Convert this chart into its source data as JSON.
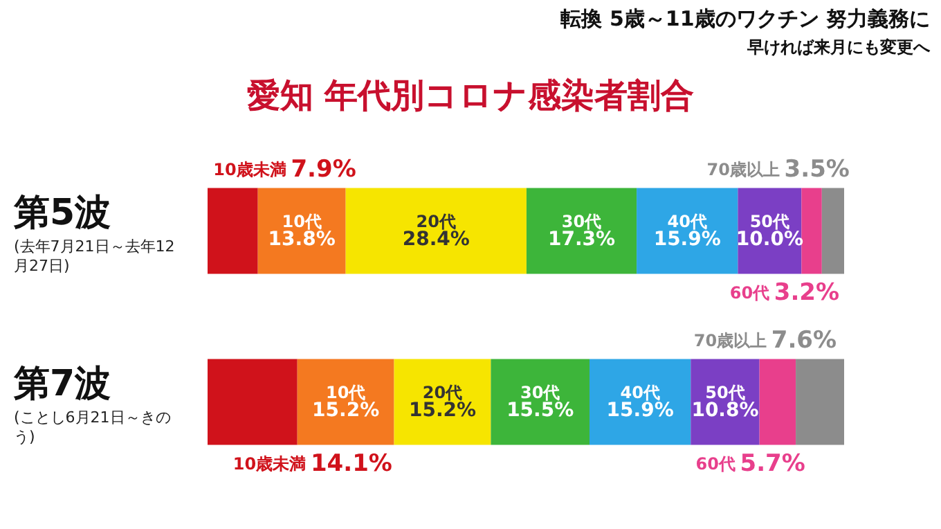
{
  "chart_data": {
    "type": "bar",
    "orientation": "horizontal",
    "stacked": true,
    "title": "愛知 年代別コロナ感染者割合",
    "annotations": [
      "転換 5歳～11歳のワクチン 努力義務に",
      "早ければ来月にも変更へ",
      "(去年7月21日～去年12月27日)",
      "(ことし6月21日～きのう)"
    ],
    "categories": [
      "第5波",
      "第7波"
    ],
    "xlim": [
      0,
      100
    ],
    "tick_labels": "y",
    "grid": false,
    "legend": false,
    "series": [
      {
        "name": "10歳未満",
        "color": "#d0121b",
        "values": [
          7.9,
          14.1
        ],
        "value_labels": [
          "7.9%",
          "14.1%"
        ]
      },
      {
        "name": "10代",
        "color": "#f47920",
        "values": [
          13.8,
          15.2
        ],
        "value_labels": [
          "13.8%",
          "15.2%"
        ]
      },
      {
        "name": "20代",
        "color": "#f6e500",
        "values": [
          28.4,
          15.2
        ],
        "value_labels": [
          "28.4%",
          "15.2%"
        ]
      },
      {
        "name": "30代",
        "color": "#3db53a",
        "values": [
          17.3,
          15.5
        ],
        "value_labels": [
          "17.3%",
          "15.5%"
        ]
      },
      {
        "name": "40代",
        "color": "#2ea6e6",
        "values": [
          15.9,
          15.9
        ],
        "value_labels": [
          "15.9%",
          "15.9%"
        ]
      },
      {
        "name": "50代",
        "color": "#7b3fc4",
        "values": [
          10.0,
          10.8
        ],
        "value_labels": [
          "10.0%",
          "10.8%"
        ]
      },
      {
        "name": "60代",
        "color": "#e83f8c",
        "values": [
          3.2,
          5.7
        ],
        "value_labels": [
          "3.2%",
          "5.7%"
        ]
      },
      {
        "name": "70歳以上",
        "color": "#8c8c8c",
        "values": [
          3.5,
          7.6
        ],
        "value_labels": [
          "3.5%",
          "7.6%"
        ]
      }
    ]
  }
}
